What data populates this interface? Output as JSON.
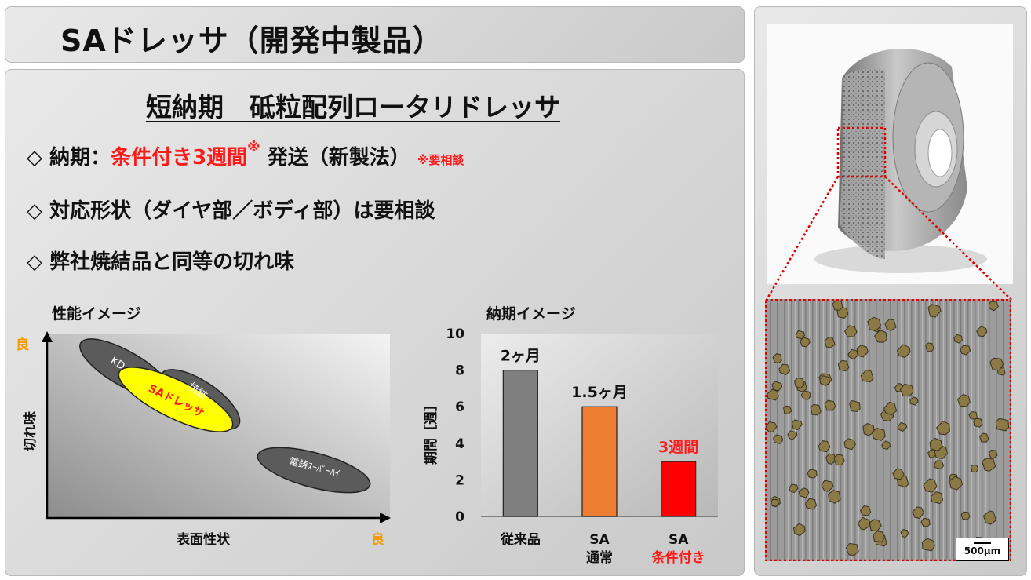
{
  "title": "SAドレッサ（開発中製品）",
  "heading": "短納期　砥粒配列ロータリドレッサ",
  "bullets": {
    "b1": {
      "marker": "◇",
      "prefix": "納期：",
      "highlight": "条件付き3週間",
      "note_mark": "※",
      "suffix": "発送（新製法）",
      "note": "※要相談"
    },
    "b2": {
      "marker": "◇",
      "text": "対応形状（ダイヤ部／ボディ部）は要相談"
    },
    "b3": {
      "marker": "◇",
      "text": "弊社焼結品と同等の切れ味"
    }
  },
  "performance_chart": {
    "title": "性能イメージ",
    "y_label": "切れ味",
    "x_label": "表面性状",
    "good_y": "良",
    "good_x": "良",
    "ellipses": [
      "KD",
      "焼結",
      "SAドレッサ",
      "電鋳ｽｰﾊﾟｰﾊｲ"
    ]
  },
  "delivery_chart_title": "納期イメージ",
  "chart_data": {
    "type": "bar",
    "title": "納期イメージ",
    "ylabel": "期間［週］",
    "ylim": [
      0,
      10
    ],
    "yticks": [
      0,
      2,
      4,
      6,
      8,
      10
    ],
    "categories": [
      "従来品",
      "SA 通常",
      "SA 条件付き"
    ],
    "category_lines": [
      [
        "従来品"
      ],
      [
        "SA",
        "通常"
      ],
      [
        "SA",
        "条件付き"
      ]
    ],
    "values": [
      8,
      6,
      3
    ],
    "data_labels": [
      "2ヶ月",
      "1.5ヶ月",
      "3週間"
    ],
    "colors": [
      "#7f7f7f",
      "#ed7d31",
      "#ff0000"
    ],
    "grid": false
  },
  "photo": {
    "scale_label": "500μm"
  },
  "colors": {
    "accent_red": "#ff1a1a",
    "good_orange": "#f59a00",
    "zoom_dotted": "#e00000"
  }
}
